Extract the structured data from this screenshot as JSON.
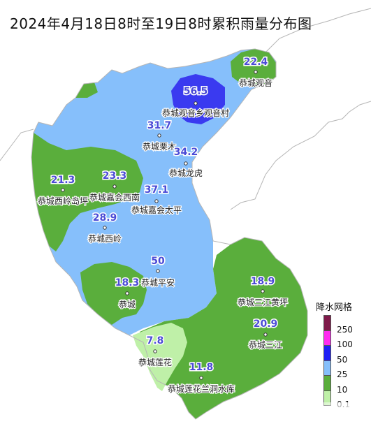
{
  "title": "2024年4月18日8时至19日8时累积雨量分布图",
  "legend": {
    "title": "降水网格",
    "items": [
      {
        "label": "250",
        "color": "#7f1a4a"
      },
      {
        "label": "100",
        "color": "#ff2bf0"
      },
      {
        "label": "50",
        "color": "#1e1ef5"
      },
      {
        "label": "25",
        "color": "#86bffb"
      },
      {
        "label": "10",
        "color": "#5aae3c"
      },
      {
        "label": "0.1",
        "color": "#bff0a8"
      }
    ]
  },
  "colors": {
    "zone_0_1": "#bff0a8",
    "zone_10": "#5aae3c",
    "zone_25": "#86bffb",
    "zone_50": "#3a3af0",
    "value_text": "#4b4bd6",
    "boundary": "#b5b5b5"
  },
  "stations": [
    {
      "name": "恭城观音",
      "value": "22.4"
    },
    {
      "name": "恭城观音乡观音村",
      "value": "56.5"
    },
    {
      "name": "恭城栗木",
      "value": "31.7"
    },
    {
      "name": "恭城龙虎",
      "value": "34.2"
    },
    {
      "name": "恭城西岭岛坪",
      "value": "21.3"
    },
    {
      "name": "恭城嘉会西南",
      "value": "23.3"
    },
    {
      "name": "恭城嘉会太平",
      "value": "37.1"
    },
    {
      "name": "恭城西岭",
      "value": "28.9"
    },
    {
      "name": "恭城平安",
      "value": "50"
    },
    {
      "name": "恭城",
      "value": "18.3"
    },
    {
      "name": "恭城三江黄坪",
      "value": "18.9"
    },
    {
      "name": "恭城三江",
      "value": "20.9"
    },
    {
      "name": "恭城莲花",
      "value": "7.8"
    },
    {
      "name": "恭城莲花兰洞水库",
      "value": "11.8"
    }
  ]
}
